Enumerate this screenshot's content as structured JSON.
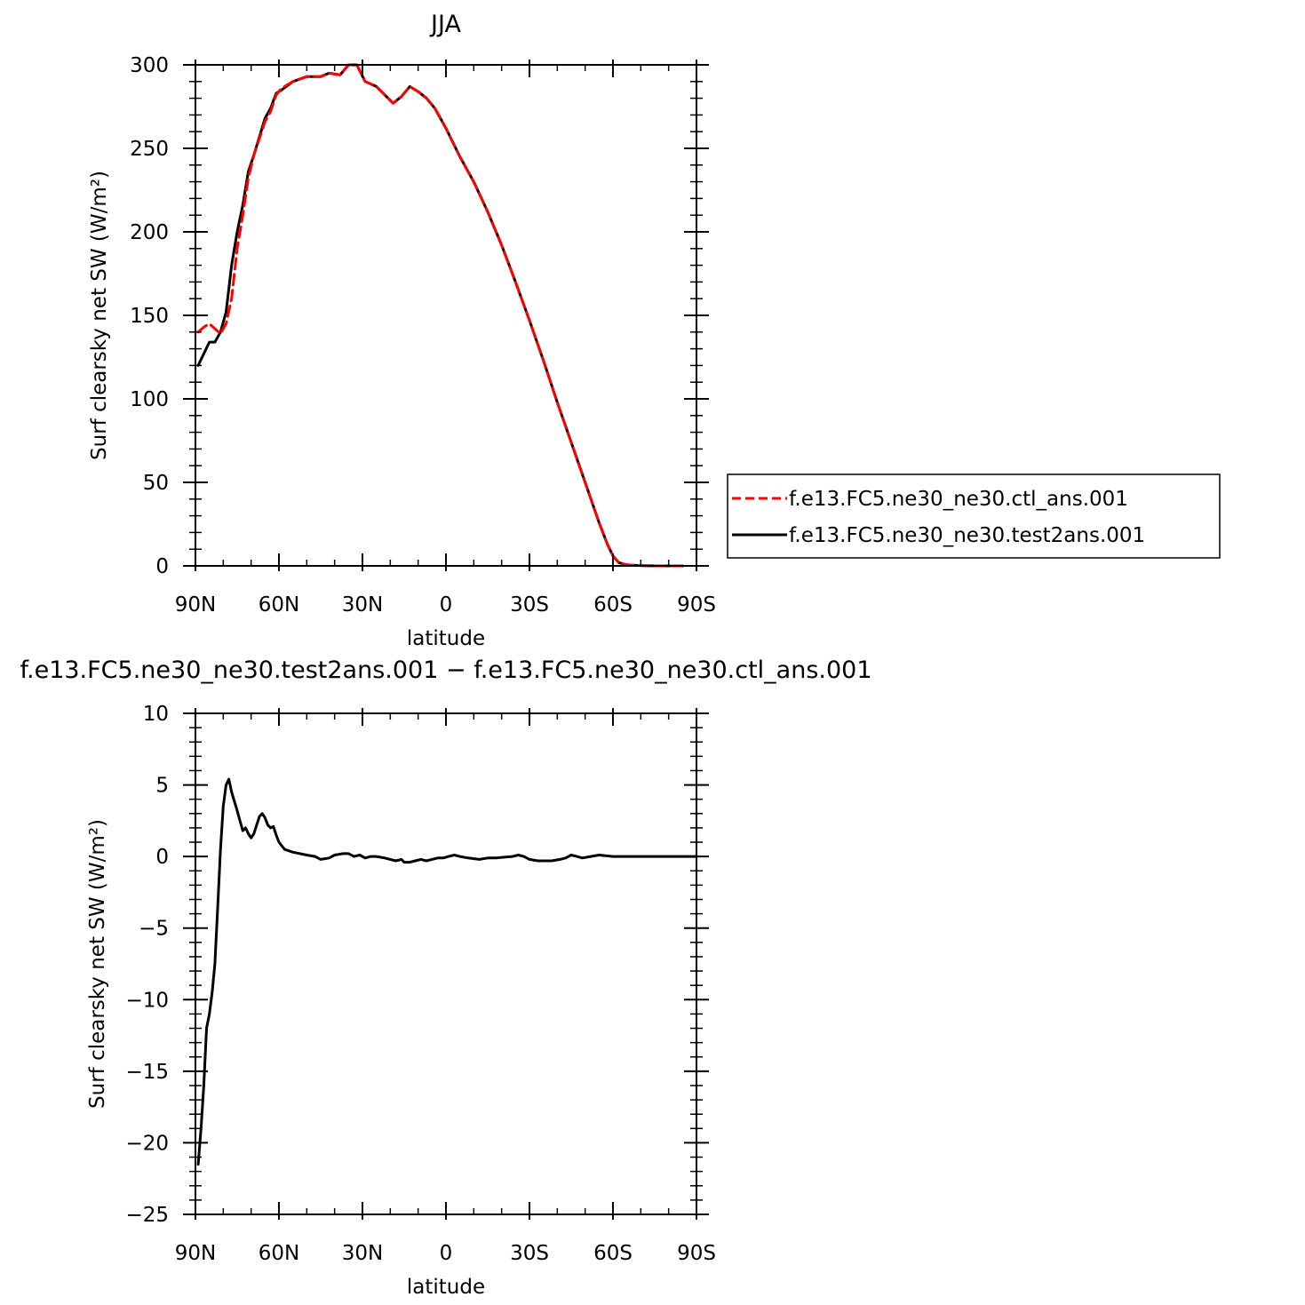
{
  "chart_data": [
    {
      "type": "line",
      "title": "JJA",
      "xlabel": "latitude",
      "ylabel": "Surf clearsky net SW (W/m²)",
      "xlim": [
        90,
        -90
      ],
      "ylim": [
        0,
        300
      ],
      "x_tick_values": [
        90,
        60,
        30,
        0,
        -30,
        -60,
        -90
      ],
      "x_tick_labels": [
        "90N",
        "60N",
        "30N",
        "0",
        "30S",
        "60S",
        "90S"
      ],
      "y_ticks": [
        0,
        50,
        100,
        150,
        200,
        250,
        300
      ],
      "legend_position": "right",
      "series": [
        {
          "name": "f.e13.FC5.ne30_ne30.ctl_ans.001",
          "color": "#ff0000",
          "dash": "dashed",
          "x": [
            89,
            87,
            85,
            83,
            81,
            79,
            77,
            75,
            73,
            71,
            69,
            67,
            65,
            63,
            61,
            59,
            55,
            50,
            45,
            42,
            38,
            35,
            32,
            29,
            25,
            22,
            19,
            16,
            13,
            10,
            7,
            4,
            0,
            -5,
            -10,
            -15,
            -20,
            -25,
            -30,
            -35,
            -40,
            -45,
            -50,
            -55,
            -58,
            -60,
            -62,
            -64,
            -66,
            -70,
            -75,
            -80,
            -85
          ],
          "y": [
            140,
            143,
            145,
            142,
            139,
            145,
            160,
            190,
            210,
            232,
            246,
            256,
            266,
            272,
            282,
            286,
            290,
            293,
            293,
            295,
            294,
            300,
            300,
            290,
            287,
            282,
            277,
            281,
            287,
            284,
            280,
            274,
            262,
            245,
            230,
            212,
            192,
            170,
            147,
            123,
            98,
            74,
            50,
            26,
            13,
            6,
            2,
            1,
            0.5,
            0.2,
            0,
            0,
            0
          ]
        },
        {
          "name": "f.e13.FC5.ne30_ne30.test2ans.001",
          "color": "#000000",
          "dash": "solid",
          "x": [
            89,
            87,
            85,
            83,
            81,
            79,
            77,
            75,
            73,
            71,
            69,
            67,
            65,
            63,
            61,
            59,
            55,
            50,
            45,
            42,
            38,
            35,
            32,
            29,
            25,
            22,
            19,
            16,
            13,
            10,
            7,
            4,
            0,
            -5,
            -10,
            -15,
            -20,
            -25,
            -30,
            -35,
            -40,
            -45,
            -50,
            -55,
            -58,
            -60,
            -62,
            -64,
            -66,
            -70,
            -75,
            -80,
            -85
          ],
          "y": [
            120,
            127,
            134,
            134,
            140,
            152,
            180,
            200,
            216,
            236,
            246,
            257,
            268,
            274,
            283,
            285,
            290,
            293,
            293,
            295,
            294,
            300,
            300,
            290,
            287,
            282,
            277,
            281,
            287,
            284,
            280,
            274,
            262,
            245,
            230,
            212,
            192,
            170,
            147,
            123,
            98,
            74,
            50,
            26,
            13,
            6,
            2,
            1,
            0.5,
            0.2,
            0,
            0,
            0
          ]
        }
      ]
    },
    {
      "type": "line",
      "title": "f.e13.FC5.ne30_ne30.test2ans.001 − f.e13.FC5.ne30_ne30.ctl_ans.001",
      "xlabel": "latitude",
      "ylabel": "Surf clearsky net SW (W/m²)",
      "xlim": [
        90,
        -90
      ],
      "ylim": [
        -25,
        10
      ],
      "x_tick_values": [
        90,
        60,
        30,
        0,
        -30,
        -60,
        -90
      ],
      "x_tick_labels": [
        "90N",
        "60N",
        "30N",
        "0",
        "30S",
        "60S",
        "90S"
      ],
      "y_ticks": [
        -25,
        -20,
        -15,
        -10,
        -5,
        0,
        5,
        10
      ],
      "y_tick_labels": [
        "−25",
        "−20",
        "−15",
        "−10",
        "−5",
        "0",
        "5",
        "10"
      ],
      "series": [
        {
          "name": "",
          "color": "#000000",
          "dash": "solid",
          "x": [
            89,
            88,
            87,
            86,
            85,
            84,
            83,
            82,
            81,
            80,
            79,
            78,
            77,
            75,
            74,
            73,
            72,
            71,
            70,
            69,
            68,
            67,
            66,
            65,
            64,
            63,
            62,
            61,
            60,
            58,
            55,
            50,
            47,
            45,
            42,
            40,
            37,
            35,
            33,
            31,
            29,
            27,
            25,
            22,
            20,
            18,
            16,
            15,
            13,
            11,
            9,
            7,
            5,
            3,
            1,
            -1,
            -3,
            -5,
            -8,
            -12,
            -15,
            -18,
            -21,
            -24,
            -26,
            -28,
            -30,
            -33,
            -36,
            -38,
            -41,
            -43,
            -45,
            -47,
            -49,
            -52,
            -55,
            -60,
            -65,
            -70,
            -80,
            -90
          ],
          "y": [
            -21.5,
            -19,
            -16,
            -12,
            -11,
            -9.5,
            -7.5,
            -3.5,
            0.5,
            3.5,
            5,
            5.4,
            4.5,
            3.2,
            2.5,
            1.8,
            2,
            1.6,
            1.3,
            1.6,
            2.2,
            2.8,
            3,
            2.7,
            2.2,
            2,
            2.1,
            1.5,
            1,
            0.5,
            0.3,
            0.1,
            0,
            -0.2,
            -0.1,
            0.1,
            0.2,
            0.2,
            0,
            0.1,
            -0.1,
            0,
            0,
            -0.1,
            -0.2,
            -0.3,
            -0.2,
            -0.4,
            -0.4,
            -0.3,
            -0.2,
            -0.3,
            -0.2,
            -0.1,
            -0.1,
            0,
            0.1,
            0,
            -0.1,
            -0.2,
            -0.1,
            -0.1,
            -0.05,
            0,
            0.1,
            0,
            -0.2,
            -0.3,
            -0.3,
            -0.3,
            -0.2,
            -0.1,
            0.1,
            0,
            -0.1,
            0,
            0.1,
            0,
            0,
            0,
            0,
            0
          ]
        }
      ]
    }
  ]
}
